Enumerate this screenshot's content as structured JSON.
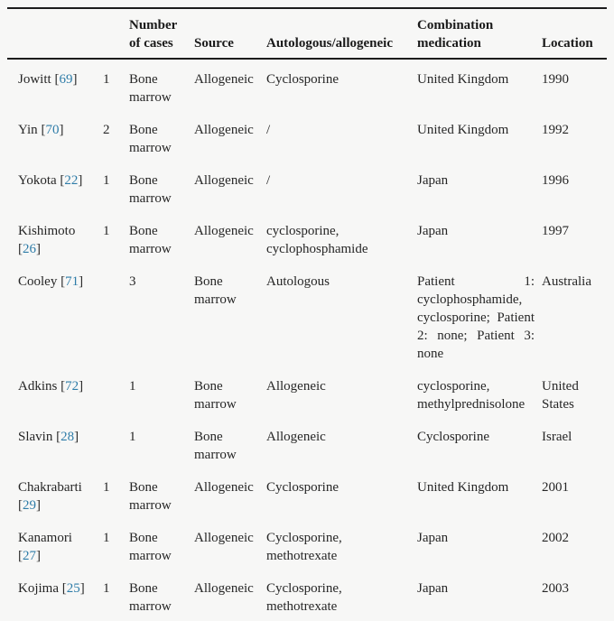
{
  "table": {
    "columns": [
      "",
      "",
      "Number of cases",
      "Source",
      "Autologous/allogeneic",
      "Combination medication",
      "Location"
    ],
    "rows": [
      {
        "author": "Jowitt",
        "ref": "69",
        "cells": [
          "1",
          "Bone marrow",
          "Allogeneic",
          "Cyclosporine",
          "United Kingdom",
          "1990"
        ]
      },
      {
        "author": "Yin",
        "ref": "70",
        "cells": [
          "2",
          "Bone marrow",
          "Allogeneic",
          "/",
          "United Kingdom",
          "1992"
        ]
      },
      {
        "author": "Yokota",
        "ref": "22",
        "cells": [
          "1",
          "Bone marrow",
          "Allogeneic",
          "/",
          "Japan",
          "1996"
        ]
      },
      {
        "author": "Kishimoto",
        "ref": "26",
        "cells": [
          "1",
          "Bone marrow",
          "Allogeneic",
          "cyclosporine, cyclophosphamide",
          "Japan",
          "1997"
        ]
      },
      {
        "author": "Cooley",
        "ref": "71",
        "cells": [
          "",
          "3",
          "Bone marrow",
          "Autologous",
          "Patient 1: cyclophosphamide, cyclosporine; Patient 2: none; Patient 3: none",
          "Australia"
        ]
      },
      {
        "author": "Adkins",
        "ref": "72",
        "cells": [
          "",
          "1",
          "Bone marrow",
          "Allogeneic",
          "cyclosporine, methylprednisolone",
          "United States"
        ]
      },
      {
        "author": "Slavin",
        "ref": "28",
        "cells": [
          "",
          "1",
          "Bone marrow",
          "Allogeneic",
          "Cyclosporine",
          "Israel"
        ]
      },
      {
        "author": "Chakrabarti",
        "ref": "29",
        "cells": [
          "1",
          "Bone marrow",
          "Allogeneic",
          "Cyclosporine",
          "United Kingdom",
          "2001"
        ]
      },
      {
        "author": "Kanamori",
        "ref": "27",
        "cells": [
          "1",
          "Bone marrow",
          "Allogeneic",
          "Cyclosporine, methotrexate",
          "Japan",
          "2002"
        ]
      },
      {
        "author": "Kojima",
        "ref": "25",
        "cells": [
          "1",
          "Bone marrow",
          "Allogeneic",
          "Cyclosporine, methotrexate",
          "Japan",
          "2003"
        ]
      }
    ],
    "colors": {
      "background": "#f7f7f6",
      "rule": "#1c1c1c",
      "text": "#262626",
      "citation_link": "#2e7ca8"
    }
  }
}
